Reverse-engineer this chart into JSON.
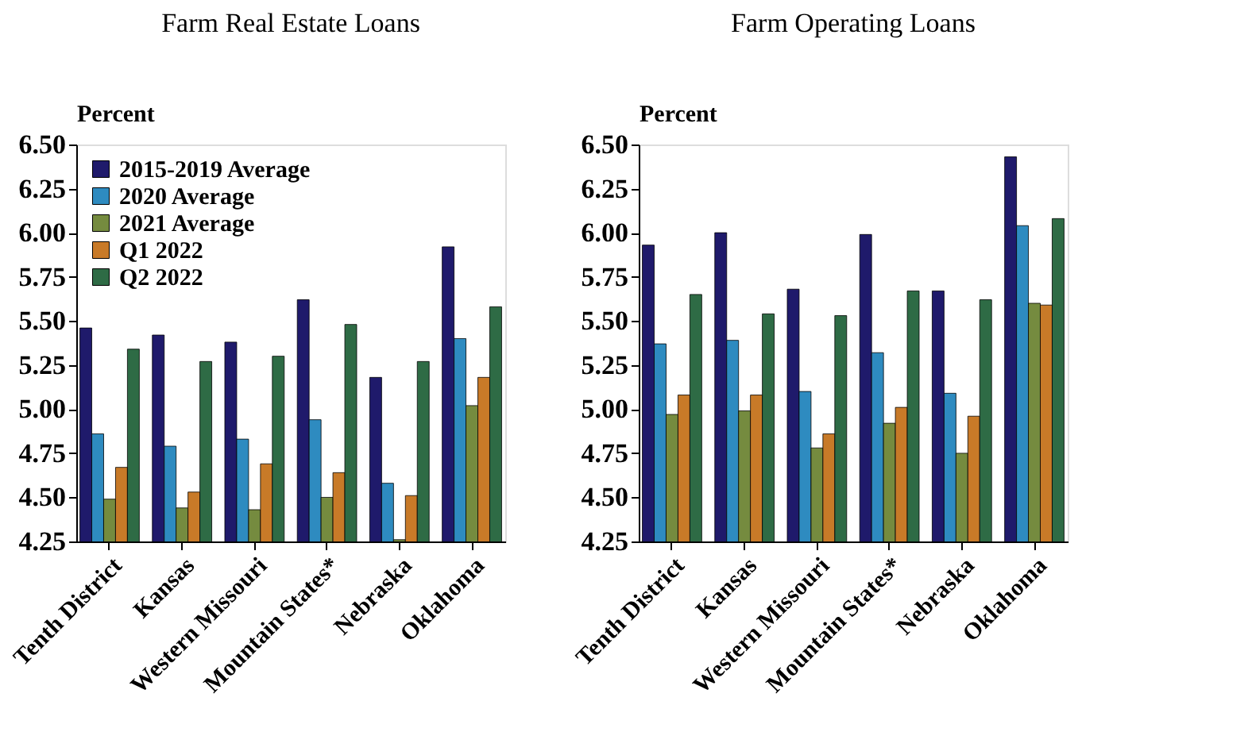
{
  "chart_data": [
    {
      "type": "bar",
      "title": "Farm Real Estate Loans",
      "ylabel": "Percent",
      "categories": [
        "Tenth District",
        "Kansas",
        "Western Missouri",
        "Mountain States*",
        "Nebraska",
        "Oklahoma"
      ],
      "series": [
        {
          "name": "2015-2019 Average",
          "color": "#1f1a6b",
          "values": [
            5.46,
            5.42,
            5.38,
            5.62,
            5.18,
            5.92
          ]
        },
        {
          "name": "2020 Average",
          "color": "#2e8bc0",
          "values": [
            4.86,
            4.79,
            4.83,
            4.94,
            4.58,
            5.4
          ]
        },
        {
          "name": "2021 Average",
          "color": "#758b3f",
          "values": [
            4.49,
            4.44,
            4.43,
            4.5,
            4.26,
            5.02
          ]
        },
        {
          "name": "Q1 2022",
          "color": "#c87a28",
          "values": [
            4.67,
            4.53,
            4.69,
            4.64,
            4.51,
            5.18
          ]
        },
        {
          "name": "Q2 2022",
          "color": "#2e6b45",
          "values": [
            5.34,
            5.27,
            5.3,
            5.48,
            5.27,
            5.58
          ]
        }
      ],
      "ylim": [
        4.25,
        6.5
      ],
      "yticks": [
        {
          "value": 4.25,
          "label": "4.25"
        },
        {
          "value": 4.5,
          "label": "4.50"
        },
        {
          "value": 4.75,
          "label": "4.75"
        },
        {
          "value": 5,
          "label": "5.00"
        },
        {
          "value": 5.25,
          "label": "5.25"
        },
        {
          "value": 5.5,
          "label": "5.50"
        },
        {
          "value": 5.75,
          "label": "5.75"
        },
        {
          "value": 6,
          "label": "6.00"
        },
        {
          "value": 6.25,
          "label": "6.25"
        },
        {
          "value": 6.5,
          "label": "6.50"
        }
      ],
      "grid": false,
      "legend": "top left"
    },
    {
      "type": "bar",
      "title": "Farm Operating Loans",
      "ylabel": "Percent",
      "categories": [
        "Tenth District",
        "Kansas",
        "Western Missouri",
        "Mountain States*",
        "Nebraska",
        "Oklahoma"
      ],
      "series": [
        {
          "color": "#1f1a6b",
          "values": [
            5.93,
            6.0,
            5.68,
            5.99,
            5.67,
            6.43
          ]
        },
        {
          "color": "#2e8bc0",
          "values": [
            5.37,
            5.39,
            5.1,
            5.32,
            5.09,
            6.04
          ]
        },
        {
          "color": "#758b3f",
          "values": [
            4.97,
            4.99,
            4.78,
            4.92,
            4.75,
            5.6
          ]
        },
        {
          "color": "#c87a28",
          "values": [
            5.08,
            5.08,
            4.86,
            5.01,
            4.96,
            5.59
          ]
        },
        {
          "color": "#2e6b45",
          "values": [
            5.65,
            5.54,
            5.53,
            5.67,
            5.62,
            6.08
          ]
        }
      ],
      "ylim": [
        4.25,
        6.5
      ],
      "yticks": [
        {
          "value": 4.25,
          "label": "4.25"
        },
        {
          "value": 4.5,
          "label": "4.50"
        },
        {
          "value": 4.75,
          "label": "4.75"
        },
        {
          "value": 5,
          "label": "5.00"
        },
        {
          "value": 5.25,
          "label": "5.25"
        },
        {
          "value": 5.5,
          "label": "5.50"
        },
        {
          "value": 5.75,
          "label": "5.75"
        },
        {
          "value": 6,
          "label": "6.00"
        },
        {
          "value": 6.25,
          "label": "6.25"
        },
        {
          "value": 6.5,
          "label": "6.50"
        }
      ],
      "grid": false,
      "legend": false
    }
  ]
}
